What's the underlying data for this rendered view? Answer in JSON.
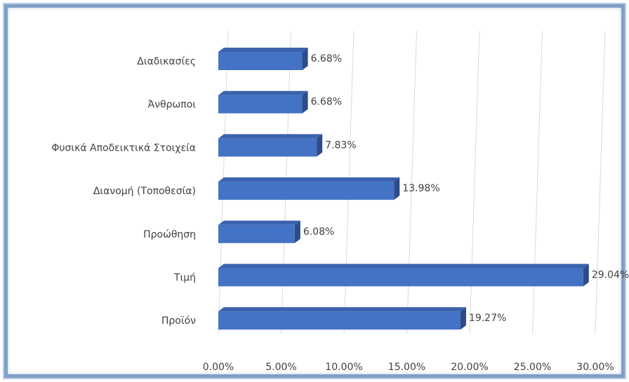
{
  "chart_data": {
    "type": "bar",
    "orientation": "horizontal",
    "style": "3d-bar",
    "categories": [
      "Διαδικασίες",
      "Άνθρωποι",
      "Φυσικά Αποδεικτικά Στοιχεία",
      "Διανομή (Τοποθεσία)",
      "Προώθηση",
      "Τιμή",
      "Προϊόν"
    ],
    "values": [
      6.68,
      6.68,
      7.83,
      13.98,
      6.08,
      29.04,
      19.27
    ],
    "data_labels": [
      "6.68%",
      "6.68%",
      "7.83%",
      "13.98%",
      "6.08%",
      "29.04%",
      "19.27%"
    ],
    "x_ticks": [
      0,
      5,
      10,
      15,
      20,
      25,
      30
    ],
    "x_tick_labels": [
      "0.00%",
      "5.00%",
      "10.00%",
      "15.00%",
      "20.00%",
      "25.00%",
      "30.00%"
    ],
    "xlim": [
      0,
      30
    ],
    "value_unit": "%",
    "title": "",
    "xlabel": "",
    "ylabel": "",
    "grid": "vertical",
    "legend": "none",
    "colors": {
      "bar_front": "#4472c4",
      "bar_top": "#3a62ad",
      "bar_side": "#2c4c8a",
      "gridline": "#d9d9d9",
      "text": "#404040",
      "frame": "#7f9fc8"
    }
  }
}
